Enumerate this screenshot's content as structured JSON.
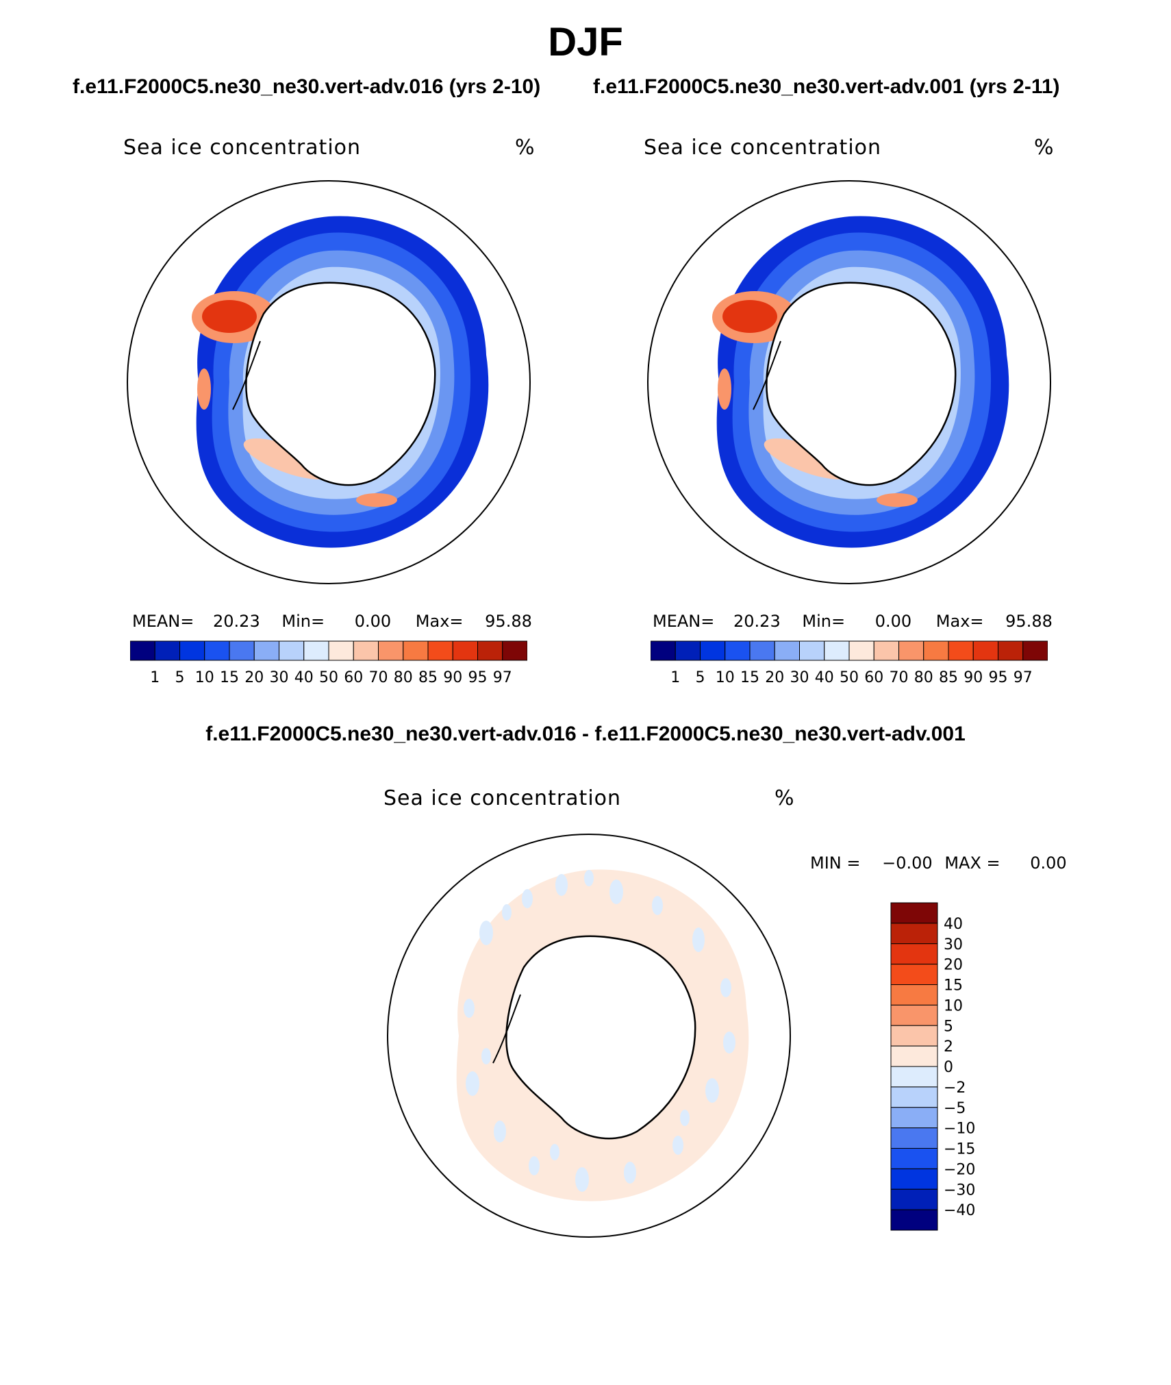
{
  "title": "DJF",
  "case_left": "f.e11.F2000C5.ne30_ne30.vert-adv.016 (yrs 2-10)",
  "case_right": "f.e11.F2000C5.ne30_ne30.vert-adv.001 (yrs 2-11)",
  "diff_title": "f.e11.F2000C5.ne30_ne30.vert-adv.016 - f.e11.F2000C5.ne30_ne30.vert-adv.001",
  "variable": "Sea ice concentration",
  "units": "%",
  "panel_left": {
    "mean_label": "MEAN=",
    "mean": "20.23",
    "min_label": "Min=",
    "min": "0.00",
    "max_label": "Max=",
    "max": "95.88"
  },
  "panel_right": {
    "mean_label": "MEAN=",
    "mean": "20.23",
    "min_label": "Min=",
    "min": "0.00",
    "max_label": "Max=",
    "max": "95.88"
  },
  "panel_diff": {
    "min_label": "MIN =",
    "min": "−0.00",
    "max_label": "MAX =",
    "max": "0.00"
  },
  "colorbar_levels": [
    "1",
    "5",
    "10",
    "15",
    "20",
    "30",
    "40",
    "50",
    "60",
    "70",
    "80",
    "85",
    "90",
    "95",
    "97"
  ],
  "colorbar_colors": [
    "#00007f",
    "#0020b8",
    "#0035e0",
    "#1a52f0",
    "#4a78f0",
    "#8aaef6",
    "#b8d2fb",
    "#ddecfd",
    "#fde9dc",
    "#fbc5aa",
    "#f9956a",
    "#f77a42",
    "#f34c1a",
    "#e33510",
    "#bb2208",
    "#7e0606"
  ],
  "diff_levels": [
    "40",
    "30",
    "20",
    "15",
    "10",
    "5",
    "2",
    "0",
    "−2",
    "−5",
    "−10",
    "−15",
    "−20",
    "−30",
    "−40"
  ],
  "diff_colors": [
    "#7e0606",
    "#bb2208",
    "#e33510",
    "#f34c1a",
    "#f77a42",
    "#f9956a",
    "#fbc5aa",
    "#fde9dc",
    "#ddecfd",
    "#b8d2fb",
    "#8aaef6",
    "#4a78f0",
    "#1a52f0",
    "#0035e0",
    "#0020b8",
    "#00007f"
  ],
  "chart_data": [
    {
      "type": "heatmap",
      "title": "Sea ice concentration",
      "units": "%",
      "region": "Antarctic (south polar stereographic)",
      "season": "DJF",
      "case": "f.e11.F2000C5.ne30_ne30.vert-adv.016 (yrs 2-10)",
      "mean": 20.23,
      "min": 0.0,
      "max": 95.88,
      "levels": [
        1,
        5,
        10,
        15,
        20,
        30,
        40,
        50,
        60,
        70,
        80,
        85,
        90,
        95,
        97
      ]
    },
    {
      "type": "heatmap",
      "title": "Sea ice concentration",
      "units": "%",
      "region": "Antarctic (south polar stereographic)",
      "season": "DJF",
      "case": "f.e11.F2000C5.ne30_ne30.vert-adv.001 (yrs 2-11)",
      "mean": 20.23,
      "min": 0.0,
      "max": 95.88,
      "levels": [
        1,
        5,
        10,
        15,
        20,
        30,
        40,
        50,
        60,
        70,
        80,
        85,
        90,
        95,
        97
      ]
    },
    {
      "type": "heatmap",
      "title": "Sea ice concentration",
      "units": "%",
      "region": "Antarctic (south polar stereographic)",
      "season": "DJF",
      "case": "f.e11.F2000C5.ne30_ne30.vert-adv.016 - f.e11.F2000C5.ne30_ne30.vert-adv.001",
      "min": -0.0,
      "max": 0.0,
      "levels": [
        -40,
        -30,
        -20,
        -15,
        -10,
        -5,
        -2,
        0,
        2,
        5,
        10,
        15,
        20,
        30,
        40
      ]
    }
  ]
}
